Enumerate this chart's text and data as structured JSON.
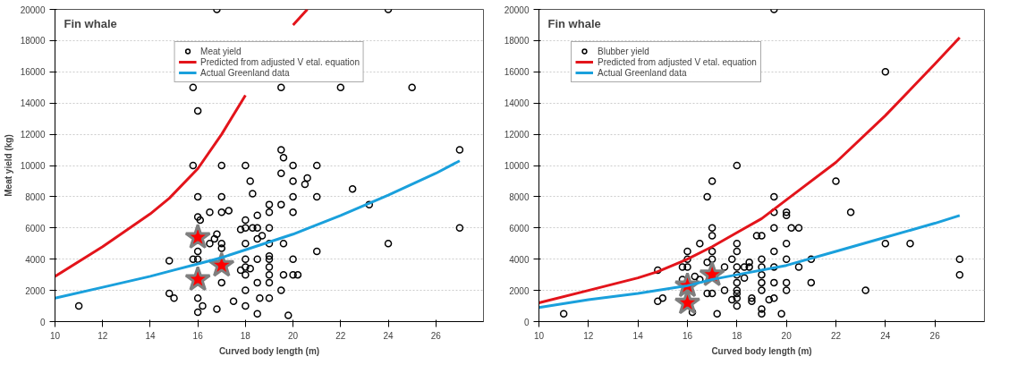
{
  "chart_data": [
    {
      "type": "scatter",
      "title": "Fin whale",
      "xlabel": "Curved body length (m)",
      "ylabel": "Meat yield (kg)",
      "xlim": [
        10,
        28
      ],
      "ylim": [
        0,
        20000
      ],
      "xticks": [
        10,
        12,
        14,
        16,
        18,
        20,
        22,
        24,
        26
      ],
      "yticks": [
        0,
        2000,
        4000,
        6000,
        8000,
        10000,
        12000,
        14000,
        16000,
        18000,
        20000
      ],
      "grid": "y",
      "legend": "top",
      "series": [
        {
          "name": "Meat yield",
          "type": "scatter",
          "marker": "circle",
          "color": "#000000",
          "x": [
            11,
            14.8,
            14.8,
            15,
            15.8,
            16,
            15.8,
            16,
            16,
            16.1,
            16.5,
            17,
            17.3,
            17,
            17,
            15.8,
            16,
            16,
            16.5,
            16.8,
            17,
            17,
            16.7,
            17,
            16,
            16,
            16.2,
            16.8,
            17.5,
            18,
            18,
            18,
            18,
            18.2,
            17.8,
            18,
            18.5,
            18,
            18.5,
            18,
            18.5,
            18.3,
            18,
            18.5,
            17.8,
            18,
            18.2,
            18.3,
            18.5,
            18.6,
            18.5,
            19,
            19,
            19,
            19,
            19,
            19,
            19,
            19,
            19,
            19,
            18.7,
            19.5,
            19.5,
            19.5,
            19.6,
            19.6,
            19.5,
            19.6,
            19.8,
            20,
            20.2,
            20,
            20,
            20,
            20,
            20,
            20.5,
            20.6,
            21,
            21,
            21,
            22.5,
            23.2,
            24,
            27,
            27,
            16.8,
            24,
            19.5,
            22,
            25
          ],
          "values": [
            1000,
            3900,
            1800,
            1500,
            15000,
            13500,
            10000,
            8000,
            6700,
            6500,
            7000,
            7000,
            7100,
            8000,
            10000,
            4000,
            4000,
            4500,
            5000,
            5600,
            5000,
            4700,
            5300,
            2500,
            1500,
            600,
            1000,
            800,
            1300,
            1000,
            2000,
            3000,
            3500,
            3400,
            3300,
            4000,
            4000,
            5000,
            5300,
            6000,
            6000,
            6000,
            6500,
            6800,
            5900,
            10000,
            9000,
            8200,
            2500,
            1500,
            500,
            1500,
            2500,
            3000,
            3500,
            4000,
            4200,
            5000,
            6000,
            7000,
            7500,
            5500,
            7500,
            9500,
            11000,
            10500,
            3000,
            2000,
            5000,
            400,
            3000,
            3000,
            4000,
            7000,
            8000,
            9000,
            10000,
            8800,
            9200,
            10000,
            8000,
            4500,
            8500,
            7500,
            5000,
            11000,
            6000,
            20000,
            20000,
            15000,
            15000,
            15000
          ]
        },
        {
          "name": "Predicted from adjusted V etal. equation",
          "type": "line",
          "color": "#e3141b",
          "x": [
            10,
            12,
            14,
            14.8,
            16,
            17,
            18,
            19,
            20,
            20.6
          ],
          "values": [
            2900,
            4800,
            6900,
            7900,
            9800,
            12000,
            14500,
            null,
            19000,
            20000
          ]
        },
        {
          "name": "Actual Greenland data",
          "type": "line",
          "color": "#1aa0dc",
          "x": [
            10,
            12,
            14,
            15,
            16,
            17,
            18,
            20,
            22,
            24,
            26,
            27
          ],
          "values": [
            1500,
            2200,
            2900,
            3300,
            3700,
            4100,
            4600,
            5600,
            6800,
            8100,
            9500,
            10300
          ]
        },
        {
          "type": "scatter",
          "marker": "star",
          "color": "#ff0000",
          "x": [
            16,
            16,
            17
          ],
          "values": [
            5400,
            2700,
            3600
          ]
        }
      ]
    },
    {
      "type": "scatter",
      "title": "Fin whale",
      "xlabel": "Curved body length (m)",
      "xlim": [
        10,
        28
      ],
      "ylim": [
        0,
        20000
      ],
      "xticks": [
        10,
        12,
        14,
        16,
        18,
        20,
        22,
        24,
        26
      ],
      "yticks": [
        0,
        2000,
        4000,
        6000,
        8000,
        10000,
        12000,
        14000,
        16000,
        18000,
        20000
      ],
      "grid": "y",
      "legend": "top left",
      "series": [
        {
          "name": "Blubber yield",
          "type": "scatter",
          "marker": "circle",
          "color": "#000000",
          "x": [
            11,
            14.8,
            15,
            14.8,
            15.8,
            16,
            16,
            16,
            16.5,
            15.8,
            16.3,
            16.5,
            16.2,
            16.8,
            17,
            17,
            17,
            17,
            17,
            16.8,
            17,
            16.8,
            17.2,
            17.5,
            17.8,
            17.5,
            18,
            18,
            18,
            18,
            18,
            18,
            18,
            18,
            18,
            18,
            17.8,
            18.3,
            18.5,
            18.3,
            18.5,
            18.6,
            18.6,
            18.8,
            19,
            19,
            19,
            19,
            19,
            19,
            19,
            19,
            19.3,
            19.5,
            19.5,
            19.5,
            19.5,
            19.5,
            19.5,
            19.8,
            20,
            20,
            20,
            20,
            20,
            20,
            20.2,
            20.5,
            20.5,
            21,
            21,
            22,
            22.6,
            23.2,
            24,
            25,
            27,
            27,
            19.5,
            24,
            19.5
          ],
          "values": [
            500,
            1300,
            1500,
            3300,
            3500,
            3500,
            4000,
            4500,
            5000,
            2700,
            2900,
            2700,
            600,
            8000,
            9000,
            6000,
            5500,
            4500,
            4000,
            3800,
            1800,
            1800,
            500,
            3500,
            4000,
            2000,
            10000,
            5000,
            4500,
            3500,
            3000,
            2500,
            2000,
            1800,
            1500,
            1000,
            1400,
            2800,
            3500,
            3500,
            3800,
            1300,
            1500,
            5500,
            5500,
            4000,
            3500,
            3000,
            2500,
            2000,
            800,
            500,
            1400,
            6000,
            7000,
            4500,
            3500,
            2500,
            1500,
            500,
            7000,
            6800,
            5000,
            4000,
            2500,
            2000,
            6000,
            6000,
            3500,
            4000,
            2500,
            9000,
            7000,
            2000,
            5000,
            5000,
            4000,
            3000,
            20000,
            16000,
            8000
          ]
        },
        {
          "name": "Predicted from adjusted V etal. equation",
          "type": "line",
          "color": "#e3141b",
          "x": [
            10,
            12,
            14,
            14.8,
            16,
            17,
            18,
            19,
            20,
            22,
            24,
            26,
            27
          ],
          "values": [
            1200,
            2000,
            2800,
            3200,
            4000,
            4800,
            5700,
            6600,
            7800,
            10200,
            13200,
            16500,
            18200
          ]
        },
        {
          "name": "Actual Greenland data",
          "type": "line",
          "color": "#1aa0dc",
          "x": [
            10,
            12,
            14,
            16,
            17,
            18,
            20,
            22,
            24,
            26,
            27
          ],
          "values": [
            900,
            1400,
            1800,
            2300,
            2700,
            3000,
            3600,
            4500,
            5400,
            6300,
            6800
          ]
        },
        {
          "type": "scatter",
          "marker": "star",
          "color": "#ff0000",
          "x": [
            16,
            16,
            17
          ],
          "values": [
            2300,
            1200,
            3000
          ]
        }
      ]
    }
  ]
}
